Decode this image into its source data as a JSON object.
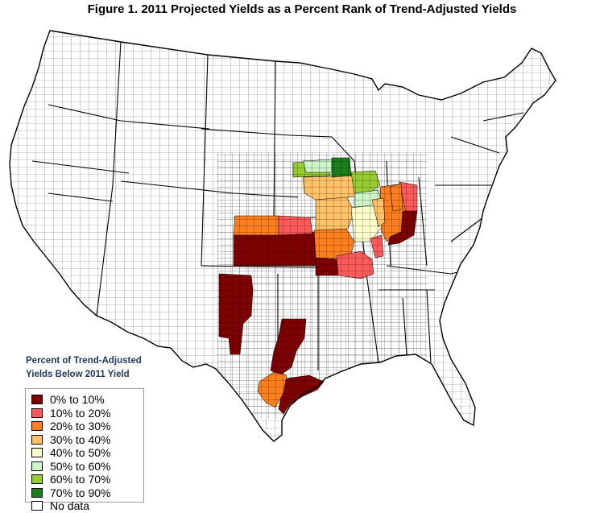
{
  "title": "Figure 1. 2011 Projected Yields as a Percent Rank of Trend-Adjusted Yields",
  "legend": {
    "heading_line1": "Percent of Trend-Adjusted",
    "heading_line2": "Yields Below 2011 Yield",
    "items": [
      {
        "label": "0% to 10%",
        "color": "#7f0000"
      },
      {
        "label": "10% to 20%",
        "color": "#ff5a5a"
      },
      {
        "label": "20% to 30%",
        "color": "#ff7f1e"
      },
      {
        "label": "30% to 40%",
        "color": "#ffc266"
      },
      {
        "label": "40% to 50%",
        "color": "#ffffcc"
      },
      {
        "label": "50% to 60%",
        "color": "#ccf5c8"
      },
      {
        "label": "60% to 70%",
        "color": "#99cc33"
      },
      {
        "label": "70% to 90%",
        "color": "#1a7f1a"
      },
      {
        "label": "No data",
        "color": "#ffffff"
      }
    ]
  },
  "map": {
    "region": "Contiguous United States",
    "boundaries": "county",
    "outline_color": "#000000",
    "no_data_fill": "#ffffff"
  }
}
